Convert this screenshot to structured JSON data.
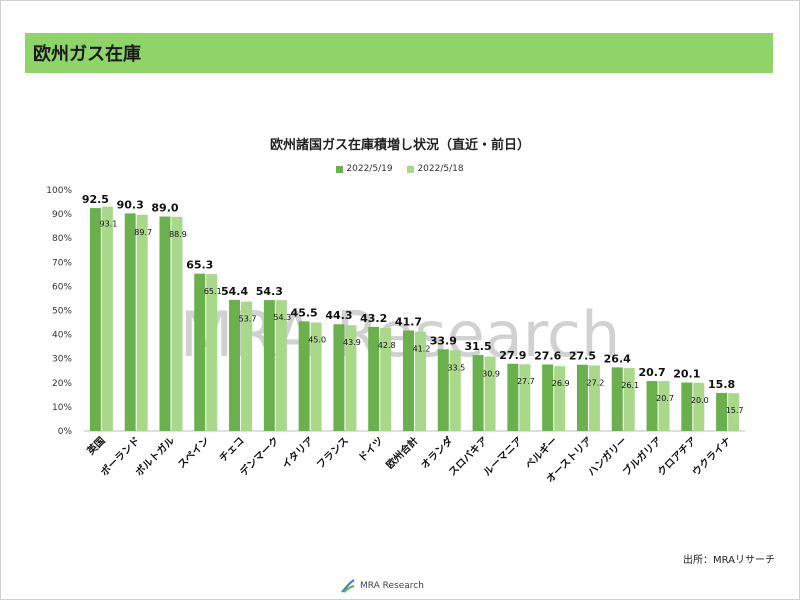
{
  "header": {
    "title": "欧州ガス在庫"
  },
  "watermark": "MRA Research",
  "source_note": "出所：MRAリサーチ",
  "footer": {
    "logo_text": "MRA Research"
  },
  "colors": {
    "header": "#8fd468",
    "series1": "#6ab04c",
    "series2": "#a9d88b"
  },
  "chart_data": {
    "type": "bar",
    "title": "欧州諸国ガス在庫積増し状況（直近・前日）",
    "xlabel": "",
    "ylabel": "",
    "ylim": [
      0,
      100
    ],
    "yticks": [
      "0%",
      "10%",
      "20%",
      "30%",
      "40%",
      "50%",
      "60%",
      "70%",
      "80%",
      "90%",
      "100%"
    ],
    "legend_position": "top-center",
    "grid": false,
    "categories": [
      "英国",
      "ポーランド",
      "ポルトガル",
      "スペイン",
      "チェコ",
      "デンマーク",
      "イタリア",
      "フランス",
      "ドイツ",
      "欧州合計",
      "オランダ",
      "スロバキア",
      "ルーマニア",
      "ベルギー",
      "オーストリア",
      "ハンガリー",
      "ブルガリア",
      "クロアチア",
      "ウクライナ"
    ],
    "series": [
      {
        "name": "2022/5/19",
        "values": [
          92.5,
          90.3,
          89.0,
          65.3,
          54.4,
          54.3,
          45.5,
          44.3,
          43.2,
          41.7,
          33.9,
          31.5,
          27.9,
          27.6,
          27.5,
          26.4,
          20.7,
          20.1,
          15.8
        ]
      },
      {
        "name": "2022/5/18",
        "values": [
          93.1,
          89.7,
          88.9,
          65.1,
          53.7,
          54.3,
          45.0,
          43.9,
          42.8,
          41.2,
          33.5,
          30.9,
          27.7,
          26.9,
          27.2,
          26.1,
          20.7,
          20.0,
          15.7
        ]
      }
    ]
  }
}
